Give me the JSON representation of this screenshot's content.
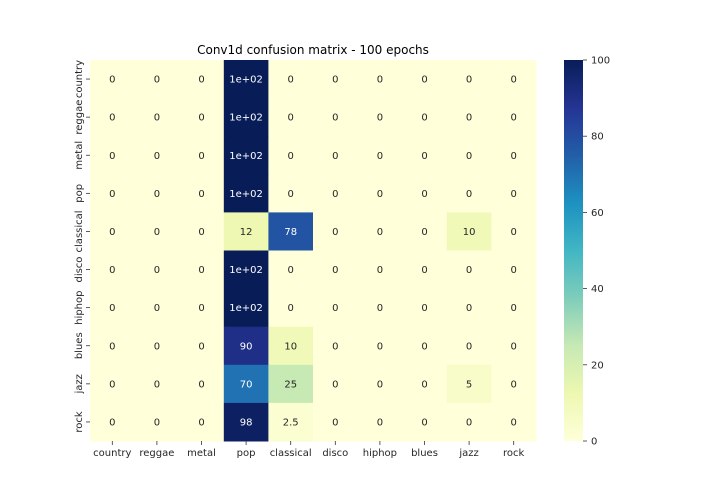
{
  "chart_data": {
    "type": "heatmap",
    "title": "Conv1d confusion matrix - 100 epochs",
    "x_categories": [
      "country",
      "reggae",
      "metal",
      "pop",
      "classical",
      "disco",
      "hiphop",
      "blues",
      "jazz",
      "rock"
    ],
    "y_categories": [
      "country",
      "reggae",
      "metal",
      "pop",
      "classical",
      "disco",
      "hiphop",
      "blues",
      "jazz",
      "rock"
    ],
    "values": [
      [
        0,
        0,
        0,
        100,
        0,
        0,
        0,
        0,
        0,
        0
      ],
      [
        0,
        0,
        0,
        100,
        0,
        0,
        0,
        0,
        0,
        0
      ],
      [
        0,
        0,
        0,
        100,
        0,
        0,
        0,
        0,
        0,
        0
      ],
      [
        0,
        0,
        0,
        100,
        0,
        0,
        0,
        0,
        0,
        0
      ],
      [
        0,
        0,
        0,
        12,
        78,
        0,
        0,
        0,
        10,
        0
      ],
      [
        0,
        0,
        0,
        100,
        0,
        0,
        0,
        0,
        0,
        0
      ],
      [
        0,
        0,
        0,
        100,
        0,
        0,
        0,
        0,
        0,
        0
      ],
      [
        0,
        0,
        0,
        90,
        10,
        0,
        0,
        0,
        0,
        0
      ],
      [
        0,
        0,
        0,
        70,
        25,
        0,
        0,
        0,
        5,
        0
      ],
      [
        0,
        0,
        0,
        98,
        2.5,
        0,
        0,
        0,
        0,
        0
      ]
    ],
    "annotations": [
      [
        "0",
        "0",
        "0",
        "1e+02",
        "0",
        "0",
        "0",
        "0",
        "0",
        "0"
      ],
      [
        "0",
        "0",
        "0",
        "1e+02",
        "0",
        "0",
        "0",
        "0",
        "0",
        "0"
      ],
      [
        "0",
        "0",
        "0",
        "1e+02",
        "0",
        "0",
        "0",
        "0",
        "0",
        "0"
      ],
      [
        "0",
        "0",
        "0",
        "1e+02",
        "0",
        "0",
        "0",
        "0",
        "0",
        "0"
      ],
      [
        "0",
        "0",
        "0",
        "12",
        "78",
        "0",
        "0",
        "0",
        "10",
        "0"
      ],
      [
        "0",
        "0",
        "0",
        "1e+02",
        "0",
        "0",
        "0",
        "0",
        "0",
        "0"
      ],
      [
        "0",
        "0",
        "0",
        "1e+02",
        "0",
        "0",
        "0",
        "0",
        "0",
        "0"
      ],
      [
        "0",
        "0",
        "0",
        "90",
        "10",
        "0",
        "0",
        "0",
        "0",
        "0"
      ],
      [
        "0",
        "0",
        "0",
        "70",
        "25",
        "0",
        "0",
        "0",
        "5",
        "0"
      ],
      [
        "0",
        "0",
        "0",
        "98",
        "2.5",
        "0",
        "0",
        "0",
        "0",
        "0"
      ]
    ],
    "colorscale": "YlGnBu",
    "colorbar": {
      "min": 0,
      "max": 100,
      "ticks": [
        "0",
        "20",
        "40",
        "60",
        "80",
        "100"
      ]
    }
  }
}
